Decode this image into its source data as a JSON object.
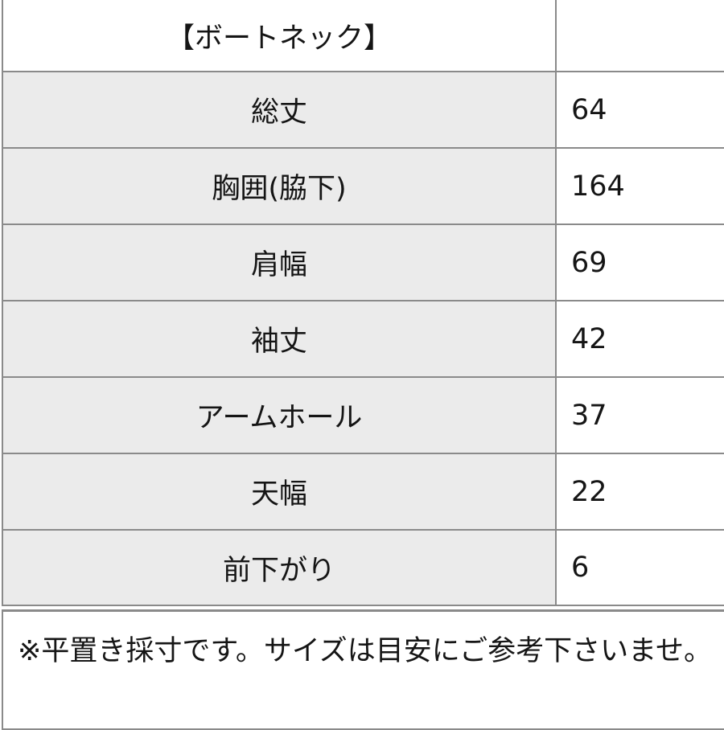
{
  "table": {
    "header": {
      "label": "【ボートネック】",
      "value": ""
    },
    "rows": [
      {
        "label": "総丈",
        "value": "64"
      },
      {
        "label": "胸囲(脇下)",
        "value": "164"
      },
      {
        "label": "肩幅",
        "value": "69"
      },
      {
        "label": "袖丈",
        "value": "42"
      },
      {
        "label": "アームホール",
        "value": "37"
      },
      {
        "label": "天幅",
        "value": "22"
      },
      {
        "label": "前下がり",
        "value": "6"
      }
    ]
  },
  "note": "※平置き採寸です。サイズは目安にご参考下さいませ。",
  "colors": {
    "label_bg": "#ebebeb",
    "border": "#8a8a8a",
    "text": "#151515"
  }
}
